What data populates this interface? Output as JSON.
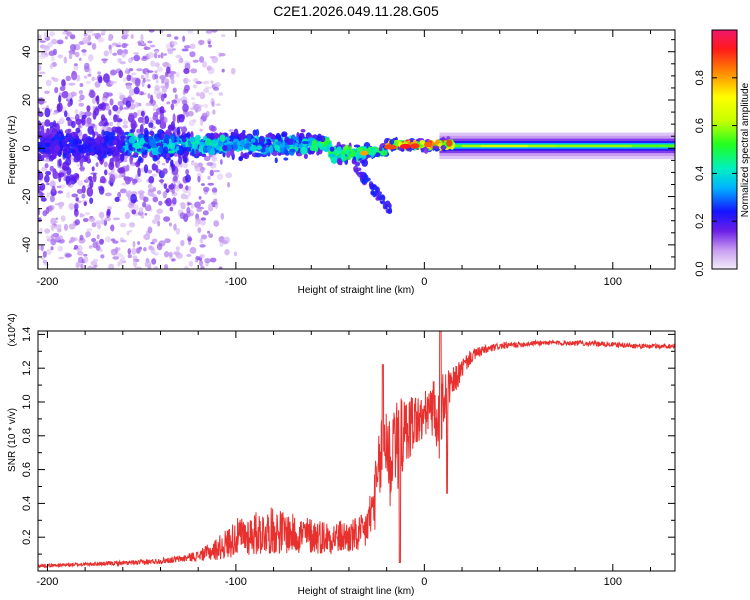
{
  "title": "C2E1.2026.049.11.28.G05",
  "chart_data": [
    {
      "type": "heatmap",
      "name": "spectrogram",
      "xlabel": "Height of straight line (km)",
      "ylabel": "Frequency (Hz)",
      "xlim": [
        -205,
        133
      ],
      "ylim": [
        -50,
        49
      ],
      "xticks": [
        -200,
        -100,
        0,
        100
      ],
      "xtick_labels": [
        "-200",
        "-100",
        "0",
        "100"
      ],
      "yticks": [
        -40,
        -20,
        0,
        20,
        40
      ],
      "ytick_labels": [
        "-40",
        "-20",
        "0",
        "20",
        "40"
      ],
      "colorbar": {
        "label": "Normalized spectral amplitude",
        "range": [
          0,
          1
        ],
        "ticks": [
          0.0,
          0.2,
          0.4,
          0.6,
          0.8
        ],
        "tick_labels": [
          "0.0",
          "0.2",
          "0.4",
          "0.6",
          "0.8"
        ]
      }
    },
    {
      "type": "line",
      "name": "snr",
      "xlabel": "Height of straight line (km)",
      "ylabel": "SNR (10 * v/v)",
      "scale_label": "(x10^4)",
      "color": "#e8302e",
      "xlim": [
        -205,
        133
      ],
      "ylim": [
        0,
        1.42
      ],
      "xticks": [
        -200,
        -100,
        0,
        100
      ],
      "xtick_labels": [
        "-200",
        "-100",
        "0",
        "100"
      ],
      "yticks": [
        0.2,
        0.4,
        0.6,
        0.8,
        1.0,
        1.2,
        1.4
      ],
      "ytick_labels": [
        "0.2",
        "0.4",
        "0.6",
        "0.8",
        "1.0",
        "1.2",
        "1.4"
      ],
      "x": [
        -205,
        -180,
        -150,
        -130,
        -120,
        -112,
        -105,
        -100,
        -90,
        -80,
        -70,
        -60,
        -50,
        -40,
        -32,
        -28,
        -25,
        -22,
        -20,
        -18,
        -16,
        -14,
        -12,
        -10,
        -8,
        -5,
        -2,
        0,
        3,
        6,
        8,
        10,
        12,
        15,
        20,
        25,
        30,
        40,
        60,
        80,
        100,
        115,
        133
      ],
      "y": [
        0.03,
        0.04,
        0.05,
        0.07,
        0.09,
        0.12,
        0.16,
        0.2,
        0.22,
        0.24,
        0.22,
        0.21,
        0.2,
        0.2,
        0.22,
        0.35,
        0.5,
        0.75,
        0.8,
        0.6,
        0.85,
        0.7,
        0.8,
        0.8,
        0.85,
        0.9,
        0.88,
        0.92,
        0.96,
        0.9,
        0.85,
        1.0,
        1.05,
        1.1,
        1.2,
        1.27,
        1.3,
        1.33,
        1.35,
        1.35,
        1.34,
        1.33,
        1.33
      ],
      "noise": [
        0.01,
        0.01,
        0.015,
        0.02,
        0.03,
        0.06,
        0.09,
        0.11,
        0.13,
        0.14,
        0.12,
        0.11,
        0.1,
        0.1,
        0.12,
        0.16,
        0.22,
        0.28,
        0.3,
        0.3,
        0.28,
        0.26,
        0.24,
        0.22,
        0.2,
        0.18,
        0.15,
        0.14,
        0.14,
        0.14,
        0.2,
        0.18,
        0.14,
        0.1,
        0.06,
        0.04,
        0.03,
        0.02,
        0.015,
        0.015,
        0.015,
        0.015,
        0.015
      ]
    }
  ]
}
